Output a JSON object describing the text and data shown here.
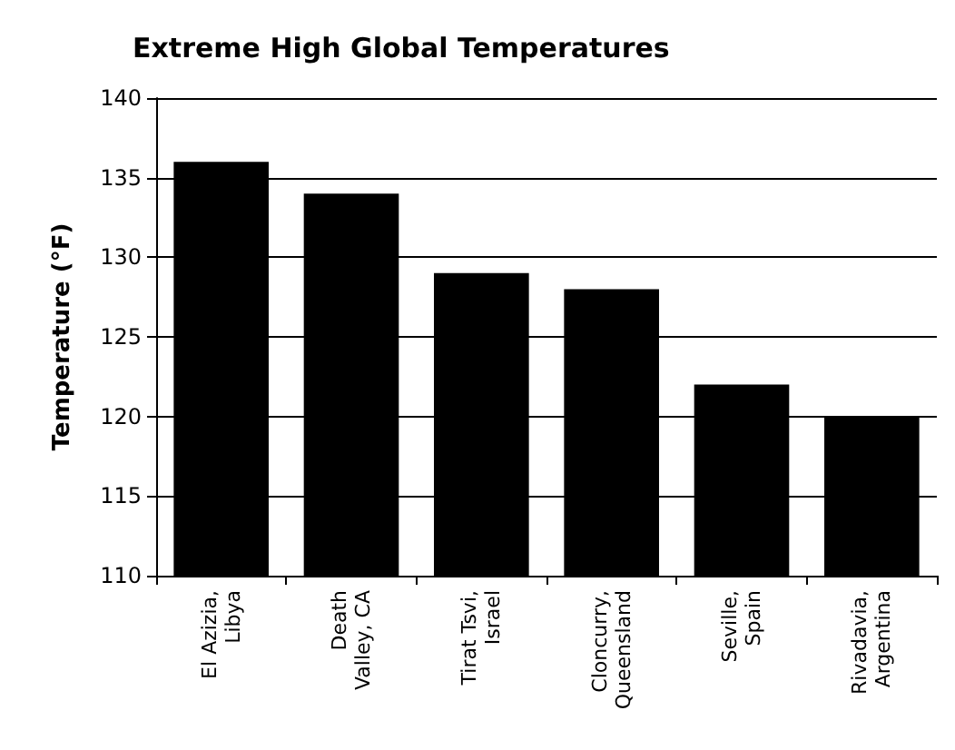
{
  "chart_data": {
    "type": "bar",
    "title": "Extreme High Global Temperatures",
    "ylabel": "Temperature (°F)",
    "categories": [
      "El Azizia,\nLibya",
      "Death\nValley, CA",
      "Tirat Tsvi,\nIsrael",
      "Cloncurry,\nQueensland",
      "Seville,\nSpain",
      "Rivadavia,\nArgentina"
    ],
    "values": [
      136,
      134,
      129,
      128,
      122,
      120
    ],
    "color": "#000000",
    "ylim": [
      110,
      140
    ],
    "yticks": [
      110,
      115,
      120,
      125,
      130,
      135,
      140
    ],
    "grid": "y"
  }
}
